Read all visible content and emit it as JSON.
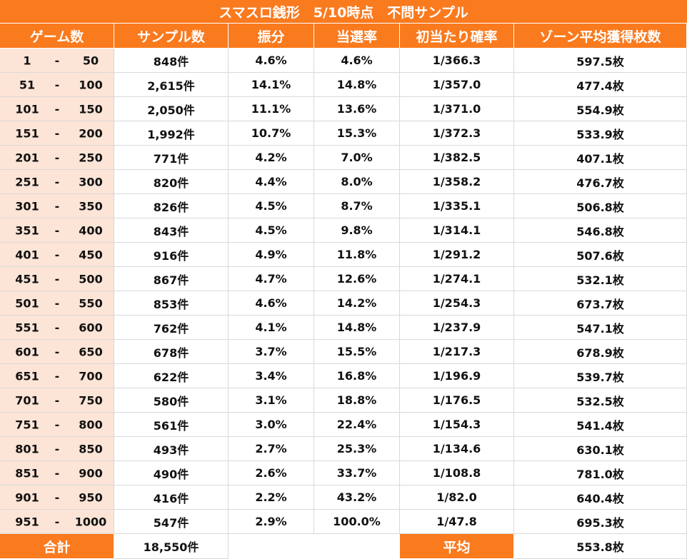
{
  "title": "スマスロ銭形　5/10時点　不問サンプル",
  "table": {
    "header": [
      "ゲーム数",
      "サンプル数",
      "振分",
      "当選率",
      "初当たり確率",
      "ゾーン平均獲得枚数"
    ],
    "rows": [
      [
        "1",
        "-",
        "50",
        "848件",
        "4.6%",
        "4.6%",
        "1/366.3",
        "597.5枚"
      ],
      [
        "51",
        "-",
        "100",
        "2,615件",
        "14.1%",
        "14.8%",
        "1/357.0",
        "477.4枚"
      ],
      [
        "101",
        "-",
        "150",
        "2,050件",
        "11.1%",
        "13.6%",
        "1/371.0",
        "554.9枚"
      ],
      [
        "151",
        "-",
        "200",
        "1,992件",
        "10.7%",
        "15.3%",
        "1/372.3",
        "533.9枚"
      ],
      [
        "201",
        "-",
        "250",
        "771件",
        "4.2%",
        "7.0%",
        "1/382.5",
        "407.1枚"
      ],
      [
        "251",
        "-",
        "300",
        "820件",
        "4.4%",
        "8.0%",
        "1/358.2",
        "476.7枚"
      ],
      [
        "301",
        "-",
        "350",
        "826件",
        "4.5%",
        "8.7%",
        "1/335.1",
        "506.8枚"
      ],
      [
        "351",
        "-",
        "400",
        "843件",
        "4.5%",
        "9.8%",
        "1/314.1",
        "546.8枚"
      ],
      [
        "401",
        "-",
        "450",
        "916件",
        "4.9%",
        "11.8%",
        "1/291.2",
        "507.6枚"
      ],
      [
        "451",
        "-",
        "500",
        "867件",
        "4.7%",
        "12.6%",
        "1/274.1",
        "532.1枚"
      ],
      [
        "501",
        "-",
        "550",
        "853件",
        "4.6%",
        "14.2%",
        "1/254.3",
        "673.7枚"
      ],
      [
        "551",
        "-",
        "600",
        "762件",
        "4.1%",
        "14.8%",
        "1/237.9",
        "547.1枚"
      ],
      [
        "601",
        "-",
        "650",
        "678件",
        "3.7%",
        "15.5%",
        "1/217.3",
        "678.9枚"
      ],
      [
        "651",
        "-",
        "700",
        "622件",
        "3.4%",
        "16.8%",
        "1/196.9",
        "539.7枚"
      ],
      [
        "701",
        "-",
        "750",
        "580件",
        "3.1%",
        "18.8%",
        "1/176.5",
        "532.5枚"
      ],
      [
        "751",
        "-",
        "800",
        "561件",
        "3.0%",
        "22.4%",
        "1/154.3",
        "541.4枚"
      ],
      [
        "801",
        "-",
        "850",
        "493件",
        "2.7%",
        "25.3%",
        "1/134.6",
        "630.1枚"
      ],
      [
        "851",
        "-",
        "900",
        "490件",
        "2.6%",
        "33.7%",
        "1/108.8",
        "781.0枚"
      ],
      [
        "901",
        "-",
        "950",
        "416件",
        "2.2%",
        "43.2%",
        "1/82.0",
        "640.4枚"
      ],
      [
        "951",
        "-",
        "1000",
        "547件",
        "2.9%",
        "100.0%",
        "1/47.8",
        "695.3枚"
      ]
    ],
    "footer": {
      "total_label": "合計",
      "total": "18,550件",
      "average_label": "平均",
      "average": "553.8枚"
    }
  }
}
